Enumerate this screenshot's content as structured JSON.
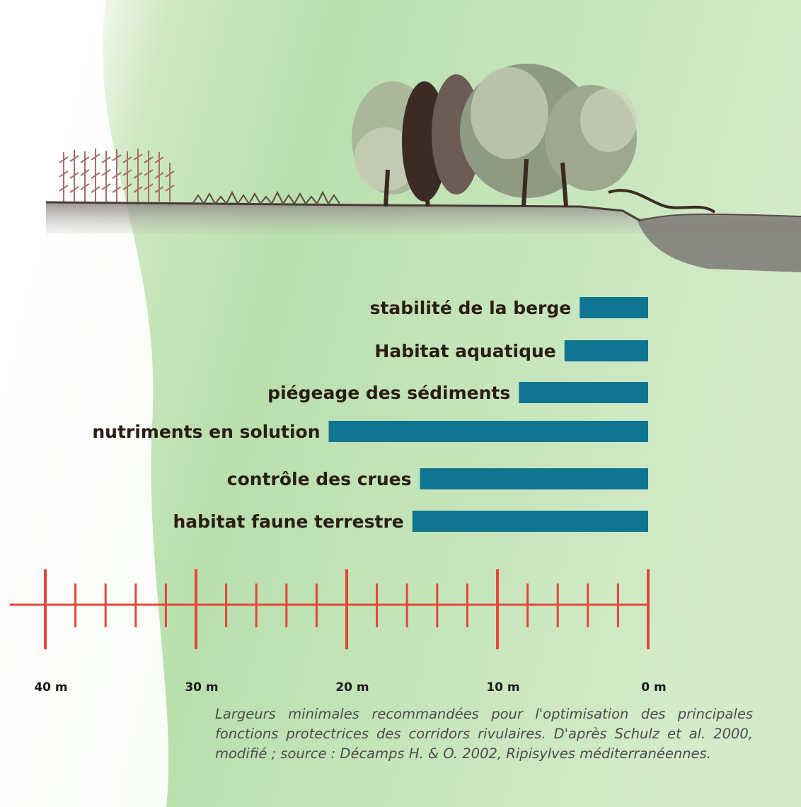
{
  "chart_data": {
    "type": "bar",
    "orientation": "horizontal",
    "categories": [
      "stabilité de la berge",
      "Habitat aquatique",
      "piégeage des sédiments",
      "nutriments en solution",
      "contrôle des crues",
      "habitat faune terrestre"
    ],
    "values": [
      4.5,
      5.5,
      8.5,
      21,
      15,
      15.5
    ],
    "xlim": [
      40,
      0
    ],
    "x_ticks": [
      "40 m",
      "30 m",
      "20 m",
      "10 m",
      "0 m"
    ],
    "bar_color": "#0f7691",
    "axis_color": "#e2473a"
  },
  "caption": "Largeurs minimales recommandées pour l'optimisation des principales fonctions protectrices des corridors rivulaires. D'après Schulz et al. 2000, modifié ; source : Décamps H. & O. 2002, Ripisylves méditerranéennes."
}
